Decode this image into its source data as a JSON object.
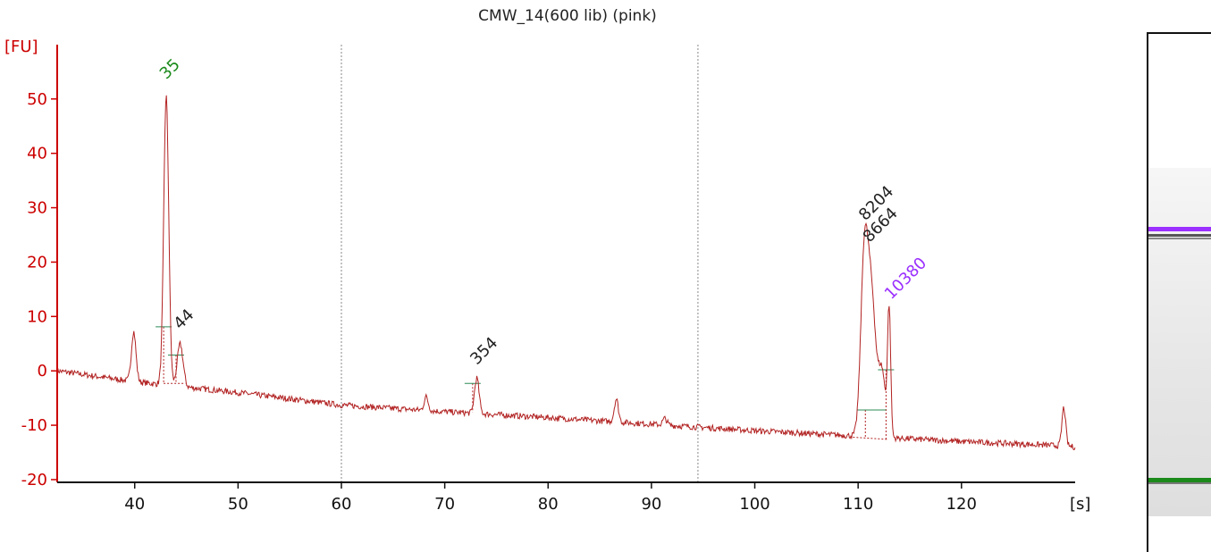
{
  "chart_data": {
    "type": "line",
    "title": "CMW_14(600 lib) (pink)",
    "ylabel": "[FU]",
    "xlabel": "[s]",
    "xlim": [
      32.5,
      131
    ],
    "ylim": [
      -20.5,
      59
    ],
    "x_ticks": [
      40,
      50,
      60,
      70,
      80,
      90,
      100,
      110,
      120
    ],
    "y_ticks": [
      -20,
      -10,
      0,
      10,
      20,
      30,
      40,
      50
    ],
    "grid": false,
    "vertical_markers": [
      60,
      94.5
    ],
    "series": [
      {
        "color": "#b22222",
        "baseline": [
          [
            32.5,
            0
          ],
          [
            40,
            -2
          ],
          [
            50,
            -4
          ],
          [
            60,
            -6.3
          ],
          [
            70,
            -7.5
          ],
          [
            80,
            -8.6
          ],
          [
            90,
            -9.8
          ],
          [
            100,
            -11
          ],
          [
            110,
            -12
          ],
          [
            120,
            -13
          ],
          [
            130,
            -13.8
          ],
          [
            131,
            -14
          ]
        ],
        "peaks": [
          {
            "x": 39.9,
            "height": 9.2,
            "width": 0.22
          },
          {
            "x": 43.05,
            "height": 53.2,
            "width": 0.24
          },
          {
            "x": 44.4,
            "height": 7.8,
            "width": 0.28
          },
          {
            "x": 68.2,
            "height": 2.5,
            "width": 0.2
          },
          {
            "x": 73.1,
            "height": 6.5,
            "width": 0.22
          },
          {
            "x": 86.6,
            "height": 4.2,
            "width": 0.2
          },
          {
            "x": 91.3,
            "height": 1.2,
            "width": 0.2
          },
          {
            "x": 110.6,
            "height": 32,
            "width": 0.35
          },
          {
            "x": 111.3,
            "height": 25,
            "width": 0.4
          },
          {
            "x": 112.3,
            "height": 12,
            "width": 0.35
          },
          {
            "x": 113.0,
            "height": 23,
            "width": 0.15
          },
          {
            "x": 129.9,
            "height": 7,
            "width": 0.18
          }
        ]
      }
    ],
    "annotations": [
      {
        "text": "35",
        "x": 43.05,
        "y": 53.5,
        "color": "#1b8a1b"
      },
      {
        "text": "44",
        "x": 44.4,
        "y": 7.5,
        "color": "#222222"
      },
      {
        "text": "354",
        "x": 73.1,
        "y": 1.0,
        "color": "#222222"
      },
      {
        "text": "8204",
        "x": 110.7,
        "y": 27.5,
        "color": "#222222"
      },
      {
        "text": "8664",
        "x": 111.1,
        "y": 23.5,
        "color": "#222222"
      },
      {
        "text": "10380",
        "x": 113.2,
        "y": 13,
        "color": "#9b30ff"
      }
    ],
    "integration_markers": [
      {
        "x": 42.8,
        "level": 8.1,
        "base": -2.3
      },
      {
        "x": 44.0,
        "level": 2.9,
        "base": -2.3
      },
      {
        "x": 72.7,
        "level": -2.3,
        "base": -7.6
      },
      {
        "x": 110.7,
        "level": -7.2,
        "base": -12.3
      },
      {
        "x": 112.7,
        "level": 0.2,
        "base": -12.6
      }
    ]
  },
  "gel": {
    "bands": [
      {
        "color": "#9b30ff"
      },
      {
        "color": "#555555"
      },
      {
        "color": "#888888"
      },
      {
        "color": "#1b8a1b"
      },
      {
        "color": "#777777"
      }
    ]
  }
}
